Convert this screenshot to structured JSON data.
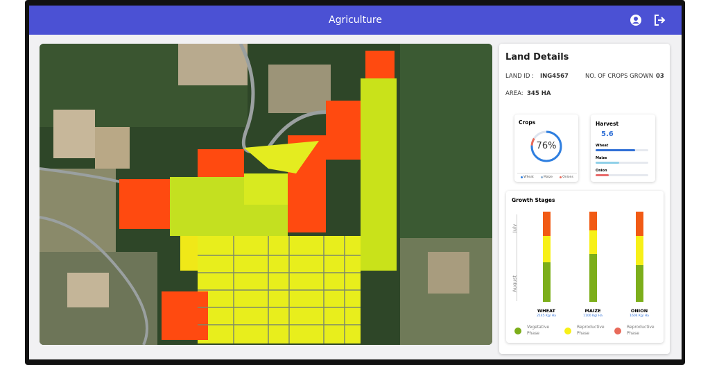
{
  "header": {
    "title": "Agriculture"
  },
  "land_details": {
    "title": "Land Details",
    "land_id_label": "LAND ID :",
    "land_id": "ING4567",
    "crops_grown_label": "NO. OF CROPS GROWN",
    "crops_grown": "03",
    "area_label": "AREA:",
    "area": "345 HA"
  },
  "crops": {
    "title": "Crops",
    "percent": {
      "value": 76,
      "label": "76%"
    },
    "legend": [
      "Wheat",
      "Maize",
      "Onions"
    ]
  },
  "harvest": {
    "title": "Harvest",
    "value": 5.6,
    "bars": [
      {
        "name": "Wheat",
        "value": 75,
        "color": "#2f6fd6"
      },
      {
        "name": "Maize",
        "value": 45,
        "color": "#8fd0e8"
      },
      {
        "name": "Onion",
        "value": 25,
        "color": "#e86a6a"
      }
    ]
  },
  "growth_stages": {
    "title": "Growth Stages",
    "axis": [
      "July",
      "August"
    ],
    "phases": [
      {
        "label": "Vegetative Phase",
        "color": "#7cae1a"
      },
      {
        "label": "Reproductive Phase",
        "color": "#f7f018"
      },
      {
        "label": "Reproductive Phase",
        "color": "#e86a5a"
      }
    ],
    "bar_colors": [
      "#7cae1a",
      "#f7f018",
      "#f15a14"
    ],
    "crops": [
      {
        "name": "WHEAT",
        "yield": "2145 Kg/ Ha",
        "stages": [
          44,
          29,
          27
        ]
      },
      {
        "name": "MAIZE",
        "yield": "1100 Kg/ Ha",
        "stages": [
          53,
          26,
          21
        ]
      },
      {
        "name": "ONION",
        "yield": "1604 Kg/ Ha",
        "stages": [
          41,
          32,
          27
        ]
      }
    ]
  }
}
